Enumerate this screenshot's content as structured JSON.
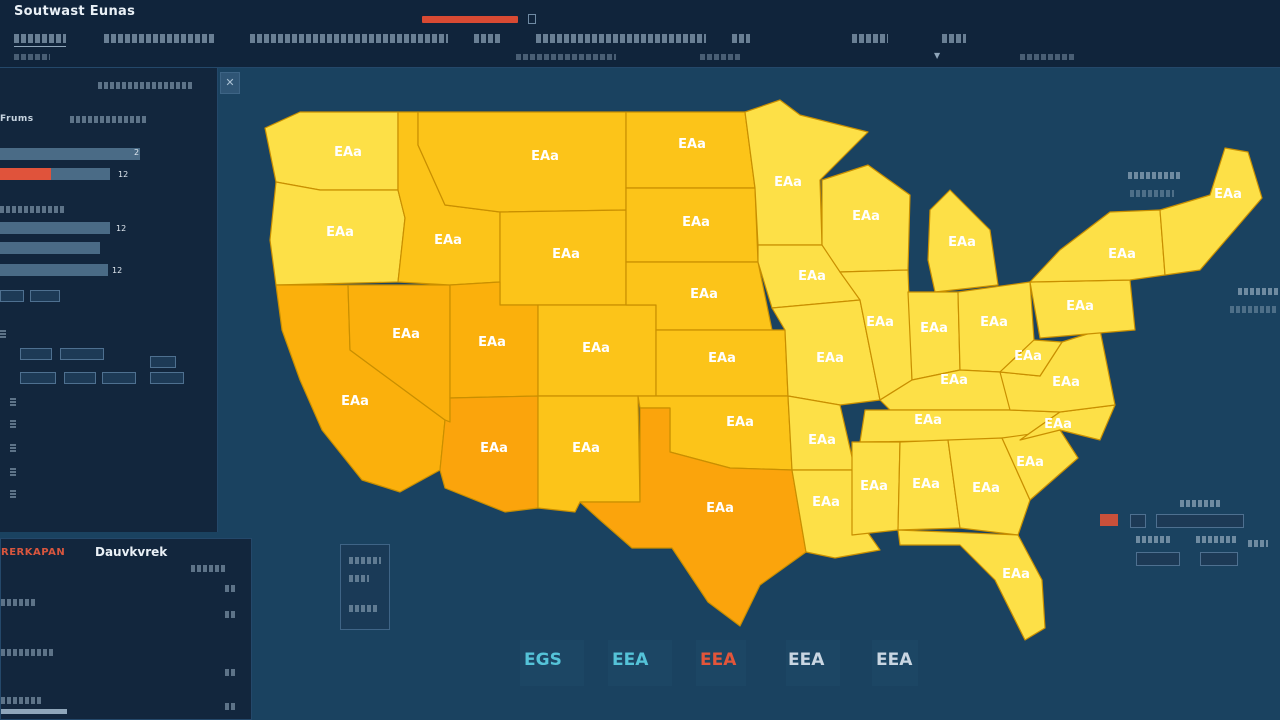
{
  "header": {
    "app_title": "Soutwast Eunas"
  },
  "left_panel": {
    "heading": "Frums",
    "bars": [
      {
        "fill": 0.58,
        "value": "2"
      },
      {
        "fill": 0.46,
        "value": "12"
      }
    ],
    "bars_lower": [
      {
        "fill": 0.5,
        "value": "12"
      },
      {
        "fill": 0.5,
        "value": "12"
      }
    ]
  },
  "bottom_left_panel": {
    "label_red": "RERKAPAN",
    "label": "Dauvkvrek"
  },
  "map": {
    "fill_colors": {
      "light": "#fde047",
      "mid": "#fcc419",
      "deep": "#fbb00c",
      "orange": "#fba40c"
    },
    "states": [
      {
        "name": "WA",
        "label": "EAa"
      },
      {
        "name": "OR",
        "label": "EAa"
      },
      {
        "name": "CA",
        "label": "EAa"
      },
      {
        "name": "NV",
        "label": "EAa"
      },
      {
        "name": "ID",
        "label": "EAa"
      },
      {
        "name": "MT",
        "label": "EAa"
      },
      {
        "name": "WY",
        "label": "EAa"
      },
      {
        "name": "UT",
        "label": "EAa"
      },
      {
        "name": "CO",
        "label": "EAa"
      },
      {
        "name": "AZ",
        "label": "EAa"
      },
      {
        "name": "NM",
        "label": "EAa"
      },
      {
        "name": "ND",
        "label": "EAa"
      },
      {
        "name": "SD",
        "label": "EAa"
      },
      {
        "name": "NE",
        "label": "EAa"
      },
      {
        "name": "KS",
        "label": "EAa"
      },
      {
        "name": "OK",
        "label": "EAa"
      },
      {
        "name": "TX",
        "label": "EAa"
      },
      {
        "name": "MN",
        "label": "EAa"
      },
      {
        "name": "IA",
        "label": "EAa"
      },
      {
        "name": "MO",
        "label": "EAa"
      },
      {
        "name": "AR",
        "label": "EAa"
      },
      {
        "name": "LA",
        "label": "EAa"
      },
      {
        "name": "WI",
        "label": "EAa"
      },
      {
        "name": "IL",
        "label": "EAa"
      },
      {
        "name": "MI",
        "label": "EAa"
      },
      {
        "name": "IN",
        "label": "EAa"
      },
      {
        "name": "OH",
        "label": "EAa"
      },
      {
        "name": "KY",
        "label": "EAa"
      },
      {
        "name": "TN",
        "label": "EAa"
      },
      {
        "name": "MS",
        "label": "EAa"
      },
      {
        "name": "AL",
        "label": "EAa"
      },
      {
        "name": "GA",
        "label": "EAa"
      },
      {
        "name": "FL",
        "label": "EAa"
      },
      {
        "name": "SC",
        "label": "EAa"
      },
      {
        "name": "NC",
        "label": "EAa"
      },
      {
        "name": "VA",
        "label": "EAa"
      },
      {
        "name": "WV",
        "label": "EAa"
      },
      {
        "name": "PA",
        "label": "EAa"
      },
      {
        "name": "NY",
        "label": "EAa"
      },
      {
        "name": "ME",
        "label": "EAa"
      }
    ]
  },
  "kpis": [
    {
      "label": "EGS",
      "color": "#55c3d8"
    },
    {
      "label": "EEA",
      "color": "#55c3d8"
    },
    {
      "label": "EEA",
      "color": "#e2553a"
    },
    {
      "label": "EEA",
      "color": "#c9d6e2"
    },
    {
      "label": "EEA",
      "color": "#c9d6e2"
    }
  ]
}
